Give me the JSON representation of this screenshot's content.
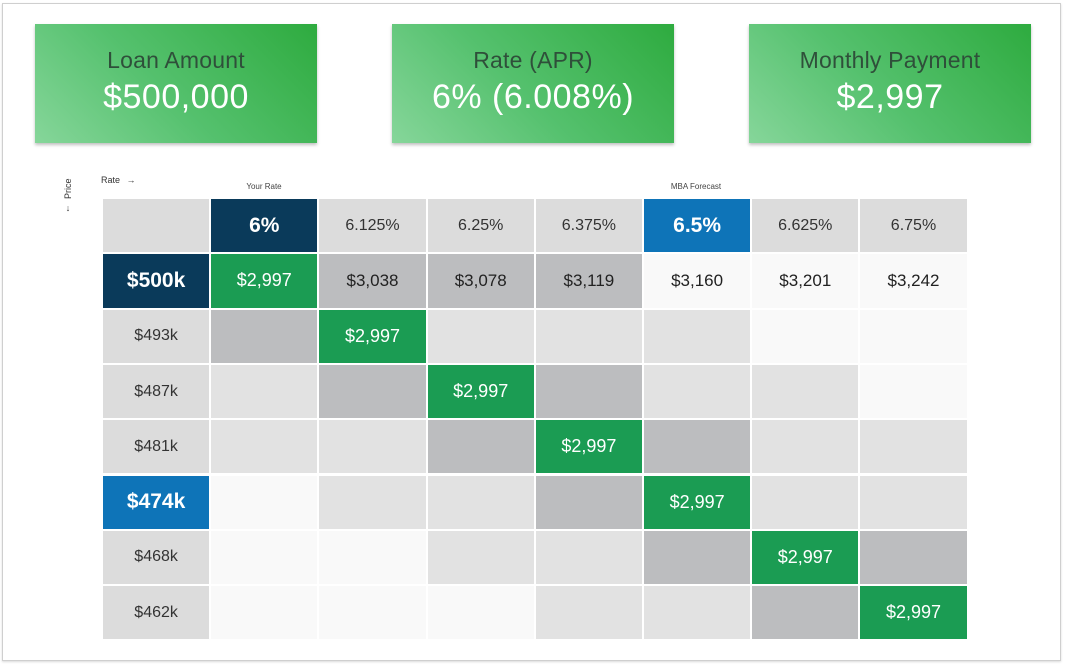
{
  "cards": [
    {
      "label": "Loan Amount",
      "value": "$500,000"
    },
    {
      "label": "Rate (APR)",
      "value": "6% (6.008%)"
    },
    {
      "label": "Monthly Payment",
      "value": "$2,997"
    }
  ],
  "axes": {
    "rate_label": "Rate",
    "price_label": "Price",
    "rate_arrow": "→",
    "price_arrow": "↓"
  },
  "column_notes": {
    "your_rate": "Your Rate",
    "mba_forecast": "MBA Forecast"
  },
  "colors": {
    "green": "#1b9c53",
    "navy": "#0a3a5a",
    "blue": "#0e74b8",
    "light": "#f9f9f9",
    "mid": "#e2e2e2",
    "darkgrey": "#bcbdbf",
    "header": "#dcdcdc"
  },
  "rates": [
    "6%",
    "6.125%",
    "6.25%",
    "6.375%",
    "6.5%",
    "6.625%",
    "6.75%"
  ],
  "prices": [
    "$500k",
    "$493k",
    "$487k",
    "$481k",
    "$474k",
    "$468k",
    "$462k"
  ],
  "first_row_payments": [
    "$2,997",
    "$3,038",
    "$3,078",
    "$3,119",
    "$3,160",
    "$3,201",
    "$3,242"
  ],
  "diagonal_payment": "$2,997",
  "cell_tones": [
    [
      "green",
      "dark",
      "dark",
      "dark",
      "light",
      "light",
      "light"
    ],
    [
      "dark",
      "green",
      "mid",
      "mid",
      "mid",
      "light",
      "light"
    ],
    [
      "mid",
      "dark",
      "green",
      "dark",
      "mid",
      "mid",
      "light"
    ],
    [
      "mid",
      "mid",
      "dark",
      "green",
      "dark",
      "mid",
      "mid"
    ],
    [
      "light",
      "mid",
      "mid",
      "dark",
      "green",
      "mid",
      "mid"
    ],
    [
      "light",
      "light",
      "mid",
      "mid",
      "dark",
      "green",
      "dark"
    ],
    [
      "light",
      "light",
      "light",
      "mid",
      "mid",
      "dark",
      "green"
    ]
  ]
}
